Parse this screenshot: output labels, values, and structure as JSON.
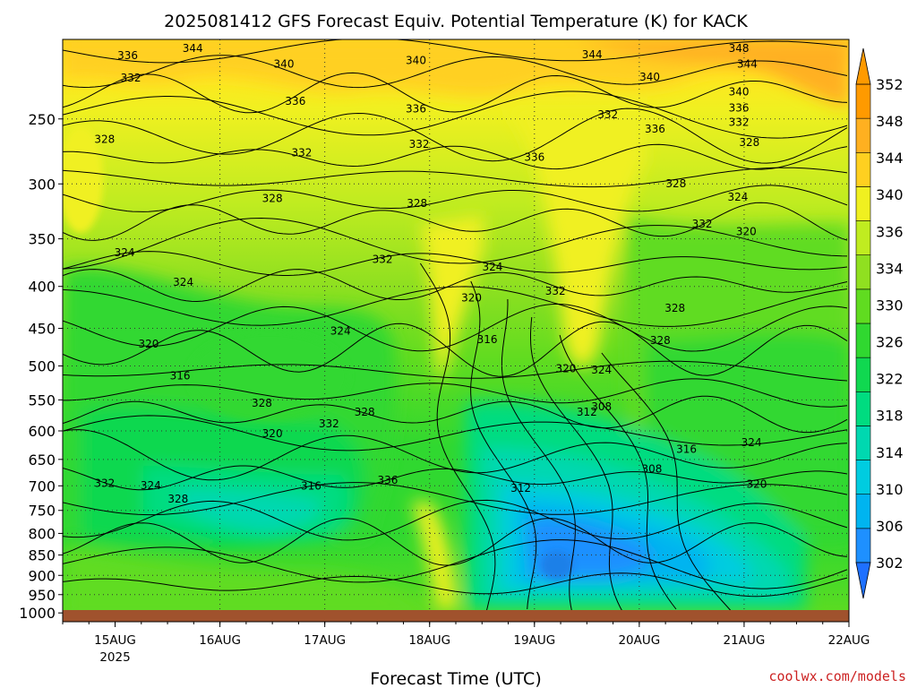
{
  "chart_data": {
    "type": "heatmap",
    "title": "2025081412 GFS Forecast Equiv. Potential Temperature (K) for KACK",
    "xlabel": "Forecast Time (UTC)",
    "ylabel": "",
    "credit": "coolwx.com/models",
    "x_ticks": [
      "15AUG",
      "16AUG",
      "17AUG",
      "18AUG",
      "19AUG",
      "20AUG",
      "21AUG",
      "22AUG"
    ],
    "x_year_label": "2025",
    "x_range_days": [
      -0.5,
      7.0
    ],
    "y_ticks": [
      250,
      300,
      350,
      400,
      450,
      500,
      550,
      600,
      650,
      700,
      750,
      800,
      850,
      900,
      950,
      1000
    ],
    "y_range_hpa": [
      200,
      1025
    ],
    "y_scale": "log-pressure",
    "grid": true,
    "colorbar": {
      "levels": [
        302,
        306,
        310,
        314,
        318,
        322,
        326,
        330,
        334,
        336,
        340,
        344,
        348,
        352
      ],
      "labels": [
        "352",
        "348",
        "344",
        "340",
        "336",
        "334",
        "330",
        "326",
        "322",
        "318",
        "314",
        "310",
        "306",
        "302"
      ],
      "colors": [
        "#1e90ff",
        "#00b4f0",
        "#00cce0",
        "#00d8b0",
        "#00dc80",
        "#10d850",
        "#30d830",
        "#60dc20",
        "#90e020",
        "#c0ec20",
        "#f0f020",
        "#ffd020",
        "#ffb020",
        "#ff9a00"
      ]
    },
    "surface_color": "#a0522d",
    "contour_labels": [
      {
        "v": "344",
        "d": 0.74,
        "p": 222
      },
      {
        "v": "336",
        "d": 0.12,
        "p": 240
      },
      {
        "v": "340",
        "d": 1.61,
        "p": 257
      },
      {
        "v": "340",
        "d": 2.87,
        "p": 250
      },
      {
        "v": "344",
        "d": 4.55,
        "p": 238
      },
      {
        "v": "348",
        "d": 5.95,
        "p": 212
      },
      {
        "v": "344",
        "d": 6.03,
        "p": 257
      },
      {
        "v": "340",
        "d": 5.1,
        "p": 284
      },
      {
        "v": "340",
        "d": 5.95,
        "p": 314
      },
      {
        "v": "332",
        "d": 0.15,
        "p": 285
      },
      {
        "v": "336",
        "d": 1.72,
        "p": 333
      },
      {
        "v": "336",
        "d": 2.87,
        "p": 348
      },
      {
        "v": "332",
        "d": 4.7,
        "p": 360
      },
      {
        "v": "336",
        "d": 5.15,
        "p": 389
      },
      {
        "v": "336",
        "d": 5.95,
        "p": 346
      },
      {
        "v": "332",
        "d": 5.95,
        "p": 375
      },
      {
        "v": "328",
        "d": -0.1,
        "p": 410
      },
      {
        "v": "328",
        "d": 6.05,
        "p": 416
      },
      {
        "v": "332",
        "d": 1.78,
        "p": 437
      },
      {
        "v": "332",
        "d": 2.9,
        "p": 420
      },
      {
        "v": "336",
        "d": 4.0,
        "p": 446
      },
      {
        "v": "328",
        "d": 5.35,
        "p": 500
      },
      {
        "v": "328",
        "d": 1.5,
        "p": 530
      },
      {
        "v": "328",
        "d": 2.88,
        "p": 540
      },
      {
        "v": "324",
        "d": 5.94,
        "p": 527
      },
      {
        "v": "332",
        "d": 5.6,
        "p": 582
      },
      {
        "v": "320",
        "d": 6.02,
        "p": 597
      },
      {
        "v": "324",
        "d": 0.09,
        "p": 640
      },
      {
        "v": "332",
        "d": 2.55,
        "p": 654
      },
      {
        "v": "324",
        "d": 3.6,
        "p": 669
      },
      {
        "v": "324",
        "d": 0.65,
        "p": 700
      },
      {
        "v": "332",
        "d": 4.2,
        "p": 718
      },
      {
        "v": "320",
        "d": 3.4,
        "p": 732
      },
      {
        "v": "328",
        "d": 5.34,
        "p": 753
      },
      {
        "v": "316",
        "d": 3.55,
        "p": 816
      },
      {
        "v": "324",
        "d": 2.15,
        "p": 799
      },
      {
        "v": "328",
        "d": 5.2,
        "p": 818
      },
      {
        "v": "320",
        "d": 0.32,
        "p": 825
      },
      {
        "v": "320",
        "d": 4.3,
        "p": 875
      },
      {
        "v": "324",
        "d": 4.64,
        "p": 878
      },
      {
        "v": "316",
        "d": 0.62,
        "p": 890
      },
      {
        "v": "328",
        "d": 1.4,
        "p": 945
      },
      {
        "v": "320",
        "d": 1.5,
        "p": 1007
      },
      {
        "v": "308",
        "d": 4.64,
        "p": 953
      },
      {
        "v": "312",
        "d": 4.5,
        "p": 964
      },
      {
        "v": "328",
        "d": 2.38,
        "p": 964
      },
      {
        "v": "332",
        "d": 2.04,
        "p": 987
      },
      {
        "v": "316",
        "d": 5.45,
        "p": 1039
      },
      {
        "v": "324",
        "d": 6.07,
        "p": 1025
      },
      {
        "v": "308",
        "d": 5.12,
        "p": 1079
      },
      {
        "v": "312",
        "d": 3.87,
        "p": 1118
      },
      {
        "v": "320",
        "d": 6.12,
        "p": 1110
      },
      {
        "v": "336",
        "d": 2.6,
        "p": 1102
      },
      {
        "v": "324",
        "d": 0.34,
        "p": 1113
      },
      {
        "v": "328",
        "d": 0.6,
        "p": 1140
      },
      {
        "v": "332",
        "d": -0.1,
        "p": 1108
      },
      {
        "v": "316",
        "d": 1.87,
        "p": 1114
      }
    ]
  }
}
